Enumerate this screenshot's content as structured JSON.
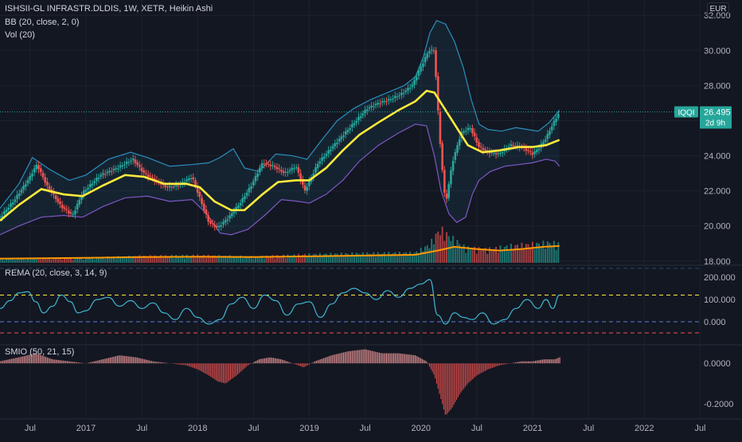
{
  "header": {
    "symbol_line": "ISHSII-GL INFRASTR.DLDIS, 1W, XETR, Heikin Ashi",
    "bb_label": "BB (20, close, 2, 0)",
    "vol_label": "Vol (20)",
    "rema_label": "REMA (20, close, 3, 14, 9)",
    "smio_label": "SMIO (50, 21, 15)",
    "currency": "EUR"
  },
  "last_price": {
    "symbol_tag": "IQQI",
    "value": "26.495",
    "countdown": "2d 9h"
  },
  "colors": {
    "background": "#131722",
    "up": "#26a69a",
    "down": "#ef5350",
    "bb_band": "#2a8fbd",
    "bb_lower": "#7e57c2",
    "bb_fill": "rgba(42,143,189,0.10)",
    "basis": "#ffeb3b",
    "vol_ma": "#ff9800",
    "rema": "#3fb6d1",
    "level_top": "#ffeb3b",
    "level_mid": "#5b7bd6",
    "level_bottom": "#f04f5a",
    "smio_pos": "#ef9a9a",
    "smio_neg": "#ef5350",
    "last_price": "#26a69a"
  },
  "chart_data": [
    {
      "type": "candlestick",
      "title": "ISHSII-GL INFRASTR.DLDIS, 1W, XETR, Heikin Ashi",
      "y_ticks": [
        "32.000",
        "30.000",
        "28.000",
        "26.000",
        "24.000",
        "22.000",
        "20.000",
        "18.000"
      ],
      "ylim": [
        17.9,
        32.6
      ],
      "x_ticks": [
        "Jul",
        "2017",
        "Jul",
        "2018",
        "Jul",
        "2019",
        "Jul",
        "2020",
        "Jul",
        "2021",
        "Jul",
        "2022",
        "Jul"
      ],
      "x_tick_dates": [
        2016.5,
        2017.0,
        2017.5,
        2018.0,
        2018.5,
        2019.0,
        2019.5,
        2020.0,
        2020.5,
        2021.0,
        2021.5,
        2022.0,
        2022.5
      ],
      "xlim": [
        2016.23,
        2022.49
      ],
      "grid": true,
      "close_path": [
        [
          2016.23,
          20.5
        ],
        [
          2016.35,
          21.4
        ],
        [
          2016.48,
          22.6
        ],
        [
          2016.56,
          23.5
        ],
        [
          2016.65,
          22.3
        ],
        [
          2016.78,
          21.1
        ],
        [
          2016.88,
          20.6
        ],
        [
          2016.97,
          21.9
        ],
        [
          2017.13,
          22.9
        ],
        [
          2017.28,
          23.3
        ],
        [
          2017.42,
          23.8
        ],
        [
          2017.52,
          23.0
        ],
        [
          2017.62,
          22.6
        ],
        [
          2017.72,
          22.2
        ],
        [
          2017.82,
          22.3
        ],
        [
          2017.95,
          22.8
        ],
        [
          2018.03,
          21.4
        ],
        [
          2018.1,
          20.2
        ],
        [
          2018.18,
          19.9
        ],
        [
          2018.28,
          20.5
        ],
        [
          2018.38,
          21.3
        ],
        [
          2018.48,
          22.3
        ],
        [
          2018.58,
          23.6
        ],
        [
          2018.68,
          23.4
        ],
        [
          2018.78,
          23.0
        ],
        [
          2018.88,
          23.4
        ],
        [
          2018.96,
          22.0
        ],
        [
          2019.08,
          23.6
        ],
        [
          2019.22,
          24.6
        ],
        [
          2019.32,
          25.3
        ],
        [
          2019.42,
          26.0
        ],
        [
          2019.52,
          26.7
        ],
        [
          2019.62,
          27.0
        ],
        [
          2019.72,
          27.2
        ],
        [
          2019.82,
          27.5
        ],
        [
          2019.92,
          28.0
        ],
        [
          2019.98,
          28.8
        ],
        [
          2020.07,
          30.0
        ],
        [
          2020.12,
          30.0
        ],
        [
          2020.15,
          26.8
        ],
        [
          2020.18,
          24.0
        ],
        [
          2020.22,
          21.2
        ],
        [
          2020.28,
          23.6
        ],
        [
          2020.36,
          25.3
        ],
        [
          2020.44,
          25.6
        ],
        [
          2020.52,
          24.5
        ],
        [
          2020.6,
          24.2
        ],
        [
          2020.7,
          24.1
        ],
        [
          2020.8,
          24.6
        ],
        [
          2020.9,
          24.5
        ],
        [
          2021.0,
          24.1
        ],
        [
          2021.05,
          24.4
        ],
        [
          2021.12,
          25.0
        ],
        [
          2021.18,
          25.8
        ],
        [
          2021.24,
          26.5
        ]
      ],
      "bb_basis": [
        [
          2016.23,
          20.3
        ],
        [
          2016.4,
          21.2
        ],
        [
          2016.6,
          22.1
        ],
        [
          2016.8,
          21.8
        ],
        [
          2016.97,
          21.7
        ],
        [
          2017.15,
          22.3
        ],
        [
          2017.35,
          22.9
        ],
        [
          2017.52,
          22.8
        ],
        [
          2017.7,
          22.4
        ],
        [
          2017.9,
          22.4
        ],
        [
          2018.02,
          22.2
        ],
        [
          2018.15,
          21.4
        ],
        [
          2018.3,
          20.9
        ],
        [
          2018.42,
          20.9
        ],
        [
          2018.58,
          21.8
        ],
        [
          2018.72,
          22.5
        ],
        [
          2018.88,
          22.6
        ],
        [
          2019.0,
          22.6
        ],
        [
          2019.15,
          23.3
        ],
        [
          2019.3,
          24.3
        ],
        [
          2019.45,
          25.2
        ],
        [
          2019.62,
          25.9
        ],
        [
          2019.8,
          26.6
        ],
        [
          2019.95,
          27.1
        ],
        [
          2020.05,
          27.7
        ],
        [
          2020.12,
          27.6
        ],
        [
          2020.2,
          26.8
        ],
        [
          2020.3,
          25.8
        ],
        [
          2020.42,
          24.6
        ],
        [
          2020.55,
          24.2
        ],
        [
          2020.7,
          24.3
        ],
        [
          2020.88,
          24.5
        ],
        [
          2021.0,
          24.5
        ],
        [
          2021.12,
          24.6
        ],
        [
          2021.24,
          24.9
        ]
      ],
      "bb_upper": [
        [
          2016.23,
          21.0
        ],
        [
          2016.4,
          22.4
        ],
        [
          2016.52,
          23.9
        ],
        [
          2016.68,
          23.2
        ],
        [
          2016.85,
          22.6
        ],
        [
          2017.0,
          22.9
        ],
        [
          2017.2,
          23.8
        ],
        [
          2017.4,
          24.2
        ],
        [
          2017.55,
          23.9
        ],
        [
          2017.75,
          23.4
        ],
        [
          2017.95,
          23.5
        ],
        [
          2018.1,
          23.6
        ],
        [
          2018.2,
          23.9
        ],
        [
          2018.32,
          24.4
        ],
        [
          2018.42,
          23.3
        ],
        [
          2018.55,
          23.1
        ],
        [
          2018.7,
          24.1
        ],
        [
          2018.85,
          24.0
        ],
        [
          2018.98,
          23.8
        ],
        [
          2019.1,
          24.8
        ],
        [
          2019.25,
          26.0
        ],
        [
          2019.4,
          26.7
        ],
        [
          2019.55,
          27.2
        ],
        [
          2019.7,
          27.6
        ],
        [
          2019.85,
          28.0
        ],
        [
          2019.95,
          28.5
        ],
        [
          2020.02,
          29.6
        ],
        [
          2020.08,
          31.0
        ],
        [
          2020.14,
          31.7
        ],
        [
          2020.22,
          31.5
        ],
        [
          2020.3,
          30.5
        ],
        [
          2020.38,
          29.0
        ],
        [
          2020.45,
          27.2
        ],
        [
          2020.52,
          25.8
        ],
        [
          2020.6,
          25.5
        ],
        [
          2020.72,
          25.4
        ],
        [
          2020.85,
          25.6
        ],
        [
          2020.95,
          25.5
        ],
        [
          2021.05,
          25.4
        ],
        [
          2021.15,
          25.9
        ],
        [
          2021.24,
          26.6
        ]
      ],
      "bb_lower": [
        [
          2016.23,
          19.5
        ],
        [
          2016.4,
          20.0
        ],
        [
          2016.6,
          20.5
        ],
        [
          2016.8,
          20.6
        ],
        [
          2016.97,
          20.5
        ],
        [
          2017.15,
          21.1
        ],
        [
          2017.35,
          21.6
        ],
        [
          2017.55,
          21.7
        ],
        [
          2017.75,
          21.4
        ],
        [
          2017.95,
          21.5
        ],
        [
          2018.08,
          20.7
        ],
        [
          2018.2,
          19.6
        ],
        [
          2018.3,
          19.5
        ],
        [
          2018.45,
          19.8
        ],
        [
          2018.6,
          20.6
        ],
        [
          2018.75,
          21.5
        ],
        [
          2018.9,
          21.4
        ],
        [
          2019.0,
          21.3
        ],
        [
          2019.15,
          21.8
        ],
        [
          2019.3,
          22.6
        ],
        [
          2019.45,
          23.7
        ],
        [
          2019.62,
          24.6
        ],
        [
          2019.8,
          25.3
        ],
        [
          2019.95,
          25.8
        ],
        [
          2020.05,
          25.7
        ],
        [
          2020.12,
          24.0
        ],
        [
          2020.18,
          22.0
        ],
        [
          2020.25,
          20.7
        ],
        [
          2020.32,
          20.2
        ],
        [
          2020.4,
          20.5
        ],
        [
          2020.46,
          21.8
        ],
        [
          2020.52,
          22.6
        ],
        [
          2020.62,
          23.1
        ],
        [
          2020.75,
          23.4
        ],
        [
          2020.88,
          23.5
        ],
        [
          2021.0,
          23.6
        ],
        [
          2021.12,
          23.8
        ],
        [
          2021.2,
          23.7
        ],
        [
          2021.24,
          23.4
        ]
      ]
    },
    {
      "type": "bar",
      "title": "Vol (20)",
      "note": "volume histogram shares the price pane; relative heights",
      "volume_profile": [
        [
          2016.23,
          0.12
        ],
        [
          2017.0,
          0.15
        ],
        [
          2017.5,
          0.2
        ],
        [
          2018.0,
          0.22
        ],
        [
          2018.5,
          0.18
        ],
        [
          2019.0,
          0.25
        ],
        [
          2019.5,
          0.28
        ],
        [
          2019.95,
          0.3
        ],
        [
          2020.08,
          0.55
        ],
        [
          2020.17,
          1.0
        ],
        [
          2020.25,
          0.8
        ],
        [
          2020.4,
          0.45
        ],
        [
          2020.6,
          0.4
        ],
        [
          2020.8,
          0.5
        ],
        [
          2021.0,
          0.55
        ],
        [
          2021.15,
          0.6
        ],
        [
          2021.24,
          0.55
        ]
      ],
      "vol_ma": [
        [
          2016.23,
          0.11
        ],
        [
          2017.0,
          0.13
        ],
        [
          2017.5,
          0.15
        ],
        [
          2018.0,
          0.16
        ],
        [
          2018.5,
          0.15
        ],
        [
          2019.0,
          0.17
        ],
        [
          2019.5,
          0.19
        ],
        [
          2019.95,
          0.21
        ],
        [
          2020.15,
          0.32
        ],
        [
          2020.3,
          0.42
        ],
        [
          2020.5,
          0.36
        ],
        [
          2020.7,
          0.32
        ],
        [
          2020.9,
          0.36
        ],
        [
          2021.1,
          0.42
        ],
        [
          2021.24,
          0.44
        ]
      ]
    },
    {
      "type": "line",
      "title": "REMA (20, close, 3, 14, 9)",
      "y_ticks": [
        "200.000",
        "100.000",
        "0.000"
      ],
      "ylim": [
        -100,
        240
      ],
      "levels": [
        240,
        120,
        0,
        -50
      ],
      "x": [
        2016.23,
        2016.32,
        2016.4,
        2016.48,
        2016.55,
        2016.62,
        2016.7,
        2016.78,
        2016.86,
        2016.93,
        2017.0,
        2017.1,
        2017.2,
        2017.3,
        2017.4,
        2017.5,
        2017.6,
        2017.7,
        2017.8,
        2017.9,
        2018.0,
        2018.1,
        2018.2,
        2018.3,
        2018.4,
        2018.5,
        2018.6,
        2018.7,
        2018.8,
        2018.9,
        2019.0,
        2019.1,
        2019.2,
        2019.3,
        2019.4,
        2019.5,
        2019.6,
        2019.7,
        2019.8,
        2019.9,
        2020.0,
        2020.08,
        2020.15,
        2020.22,
        2020.3,
        2020.38,
        2020.46,
        2020.55,
        2020.65,
        2020.75,
        2020.85,
        2020.95,
        2021.05,
        2021.12,
        2021.18,
        2021.24
      ],
      "y": [
        60,
        95,
        130,
        135,
        90,
        40,
        70,
        120,
        90,
        40,
        50,
        100,
        110,
        70,
        95,
        60,
        85,
        40,
        10,
        60,
        20,
        -10,
        10,
        80,
        110,
        60,
        120,
        95,
        30,
        80,
        90,
        20,
        80,
        130,
        150,
        130,
        100,
        140,
        110,
        150,
        170,
        190,
        30,
        -10,
        40,
        20,
        10,
        40,
        -10,
        10,
        60,
        100,
        60,
        100,
        60,
        120
      ]
    },
    {
      "type": "bar",
      "title": "SMIO (50, 21, 15)",
      "y_ticks": [
        "0.0000",
        "-0.2000"
      ],
      "ylim": [
        -0.26,
        0.08
      ],
      "x": [
        2016.23,
        2016.4,
        2016.55,
        2016.7,
        2016.85,
        2017.0,
        2017.15,
        2017.3,
        2017.45,
        2017.6,
        2017.75,
        2017.9,
        2018.0,
        2018.1,
        2018.18,
        2018.25,
        2018.35,
        2018.45,
        2018.55,
        2018.65,
        2018.75,
        2018.85,
        2018.95,
        2019.05,
        2019.2,
        2019.35,
        2019.5,
        2019.65,
        2019.8,
        2019.95,
        2020.05,
        2020.12,
        2020.18,
        2020.22,
        2020.28,
        2020.35,
        2020.42,
        2020.5,
        2020.6,
        2020.7,
        2020.8,
        2020.9,
        2021.0,
        2021.1,
        2021.2,
        2021.24
      ],
      "y": [
        0.01,
        0.03,
        0.05,
        0.02,
        0.01,
        0.0,
        0.02,
        0.04,
        0.03,
        0.01,
        0.0,
        -0.01,
        -0.03,
        -0.06,
        -0.09,
        -0.1,
        -0.06,
        -0.01,
        0.02,
        0.03,
        0.02,
        0.0,
        -0.02,
        0.01,
        0.04,
        0.06,
        0.07,
        0.05,
        0.05,
        0.04,
        0.01,
        -0.06,
        -0.18,
        -0.26,
        -0.22,
        -0.15,
        -0.1,
        -0.06,
        -0.03,
        -0.01,
        0.0,
        0.01,
        0.01,
        0.02,
        0.02,
        0.03
      ]
    }
  ]
}
